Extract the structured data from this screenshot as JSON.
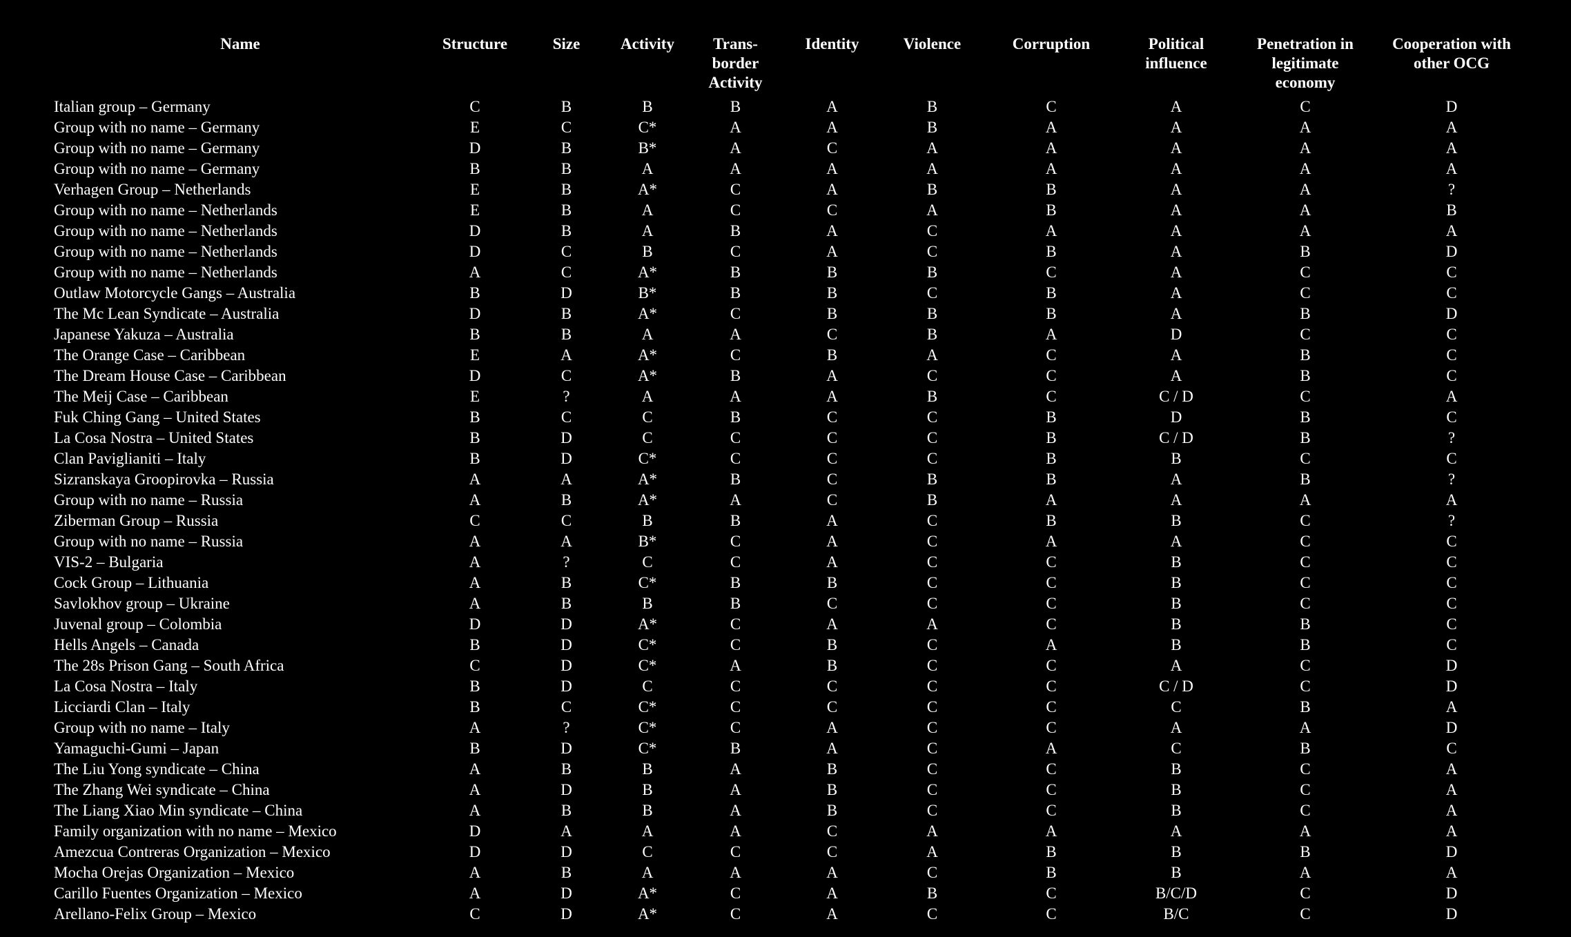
{
  "columns": [
    {
      "key": "name",
      "label": "Name"
    },
    {
      "key": "structure",
      "label": "Structure"
    },
    {
      "key": "size",
      "label": "Size"
    },
    {
      "key": "activity",
      "label": "Activity"
    },
    {
      "key": "transborder",
      "label": "Trans-\nborder\nActivity"
    },
    {
      "key": "identity",
      "label": "Identity"
    },
    {
      "key": "violence",
      "label": "Violence"
    },
    {
      "key": "corruption",
      "label": "Corruption"
    },
    {
      "key": "political",
      "label": "Political\ninfluence"
    },
    {
      "key": "penetration",
      "label": "Penetration in\nlegitimate\neconomy"
    },
    {
      "key": "cooperation",
      "label": "Cooperation with\nother OCG"
    }
  ],
  "rows": [
    [
      "Italian group – Germany",
      "C",
      "B",
      "B",
      "B",
      "A",
      "B",
      "C",
      "A",
      "C",
      "D"
    ],
    [
      "Group with no name – Germany",
      "E",
      "C",
      "C*",
      "A",
      "A",
      "B",
      "A",
      "A",
      "A",
      "A"
    ],
    [
      "Group with no name – Germany",
      "D",
      "B",
      "B*",
      "A",
      "C",
      "A",
      "A",
      "A",
      "A",
      "A"
    ],
    [
      "Group with no name – Germany",
      "B",
      "B",
      "A",
      "A",
      "A",
      "A",
      "A",
      "A",
      "A",
      "A"
    ],
    [
      "Verhagen Group – Netherlands",
      "E",
      "B",
      "A*",
      "C",
      "A",
      "B",
      "B",
      "A",
      "A",
      "?"
    ],
    [
      "Group with no name – Netherlands",
      "E",
      "B",
      "A",
      "C",
      "C",
      "A",
      "B",
      "A",
      "A",
      "B"
    ],
    [
      "Group with no name – Netherlands",
      "D",
      "B",
      "A",
      "B",
      "A",
      "C",
      "A",
      "A",
      "A",
      "A"
    ],
    [
      "Group with no name – Netherlands",
      "D",
      "C",
      "B",
      "C",
      "A",
      "C",
      "B",
      "A",
      "B",
      "D"
    ],
    [
      "Group with no name – Netherlands",
      "A",
      "C",
      "A*",
      "B",
      "B",
      "B",
      "C",
      "A",
      "C",
      "C"
    ],
    [
      "Outlaw Motorcycle Gangs – Australia",
      "B",
      "D",
      "B*",
      "B",
      "B",
      "C",
      "B",
      "A",
      "C",
      "C"
    ],
    [
      "The Mc Lean Syndicate – Australia",
      "D",
      "B",
      "A*",
      "C",
      "B",
      "B",
      "B",
      "A",
      "B",
      "D"
    ],
    [
      "Japanese Yakuza – Australia",
      "B",
      "B",
      "A",
      "A",
      "C",
      "B",
      "A",
      "D",
      "C",
      "C"
    ],
    [
      "The Orange Case – Caribbean",
      "E",
      "A",
      "A*",
      "C",
      "B",
      "A",
      "C",
      "A",
      "B",
      "C"
    ],
    [
      "The Dream House Case – Caribbean",
      "D",
      "C",
      "A*",
      "B",
      "A",
      "C",
      "C",
      "A",
      "B",
      "C"
    ],
    [
      "The Meij Case – Caribbean",
      "E",
      "?",
      "A",
      "A",
      "A",
      "B",
      "C",
      "C / D",
      "C",
      "A"
    ],
    [
      "Fuk Ching Gang – United States",
      "B",
      "C",
      "C",
      "B",
      "C",
      "C",
      "B",
      "D",
      "B",
      "C"
    ],
    [
      "La Cosa Nostra – United States",
      "B",
      "D",
      "C",
      "C",
      "C",
      "C",
      "B",
      "C / D",
      "B",
      "?"
    ],
    [
      "Clan Paviglianiti – Italy",
      "B",
      "D",
      "C*",
      "C",
      "C",
      "C",
      "B",
      "B",
      "C",
      "C"
    ],
    [
      "Sizranskaya Groopirovka – Russia",
      "A",
      "A",
      "A*",
      "B",
      "C",
      "B",
      "B",
      "A",
      "B",
      "?"
    ],
    [
      "Group with no name – Russia",
      "A",
      "B",
      "A*",
      "A",
      "C",
      "B",
      "A",
      "A",
      "A",
      "A"
    ],
    [
      "Ziberman Group – Russia",
      "C",
      "C",
      "B",
      "B",
      "A",
      "C",
      "B",
      "B",
      "C",
      "?"
    ],
    [
      "Group with no name – Russia",
      "A",
      "A",
      "B*",
      "C",
      "A",
      "C",
      "A",
      "A",
      "C",
      "C"
    ],
    [
      "VIS-2 – Bulgaria",
      "A",
      "?",
      "C",
      "C",
      "A",
      "C",
      "C",
      "B",
      "C",
      "C"
    ],
    [
      "Cock Group – Lithuania",
      "A",
      "B",
      "C*",
      "B",
      "B",
      "C",
      "C",
      "B",
      "C",
      "C"
    ],
    [
      "Savlokhov group – Ukraine",
      "A",
      "B",
      "B",
      "B",
      "C",
      "C",
      "C",
      "B",
      "C",
      "C"
    ],
    [
      "Juvenal group – Colombia",
      "D",
      "D",
      "A*",
      "C",
      "A",
      "A",
      "C",
      "B",
      "B",
      "C"
    ],
    [
      "Hells Angels – Canada",
      "B",
      "D",
      "C*",
      "C",
      "B",
      "C",
      "A",
      "B",
      "B",
      "C"
    ],
    [
      "The 28s Prison Gang – South Africa",
      "C",
      "D",
      "C*",
      "A",
      "B",
      "C",
      "C",
      "A",
      "C",
      "D"
    ],
    [
      "La Cosa Nostra – Italy",
      "B",
      "D",
      "C",
      "C",
      "C",
      "C",
      "C",
      "C / D",
      "C",
      "D"
    ],
    [
      "Licciardi Clan – Italy",
      "B",
      "C",
      "C*",
      "C",
      "C",
      "C",
      "C",
      "C",
      "B",
      "A"
    ],
    [
      "Group with no name – Italy",
      "A",
      "?",
      "C*",
      "C",
      "A",
      "C",
      "C",
      "A",
      "A",
      "D"
    ],
    [
      "Yamaguchi-Gumi – Japan",
      "B",
      "D",
      "C*",
      "B",
      "A",
      "C",
      "A",
      "C",
      "B",
      "C"
    ],
    [
      "The Liu Yong syndicate – China",
      "A",
      "B",
      "B",
      "A",
      "B",
      "C",
      "C",
      "B",
      "C",
      "A"
    ],
    [
      "The Zhang Wei syndicate – China",
      "A",
      "D",
      "B",
      "A",
      "B",
      "C",
      "C",
      "B",
      "C",
      "A"
    ],
    [
      "The Liang Xiao Min syndicate – China",
      "A",
      "B",
      "B",
      "A",
      "B",
      "C",
      "C",
      "B",
      "C",
      "A"
    ],
    [
      "Family organization with no name – Mexico",
      "D",
      "A",
      "A",
      "A",
      "C",
      "A",
      "A",
      "A",
      "A",
      "A"
    ],
    [
      "Amezcua Contreras Organization – Mexico",
      "D",
      "D",
      "C",
      "C",
      "C",
      "A",
      "B",
      "B",
      "B",
      "D"
    ],
    [
      "Mocha Orejas Organization – Mexico",
      "A",
      "B",
      "A",
      "A",
      "A",
      "C",
      "B",
      "B",
      "A",
      "A"
    ],
    [
      "Carillo Fuentes Organization – Mexico",
      "A",
      "D",
      "A*",
      "C",
      "A",
      "B",
      "C",
      "B/C/D",
      "C",
      "D"
    ],
    [
      "Arellano-Felix Group – Mexico",
      "C",
      "D",
      "A*",
      "C",
      "A",
      "C",
      "C",
      "B/C",
      "C",
      "D"
    ]
  ]
}
